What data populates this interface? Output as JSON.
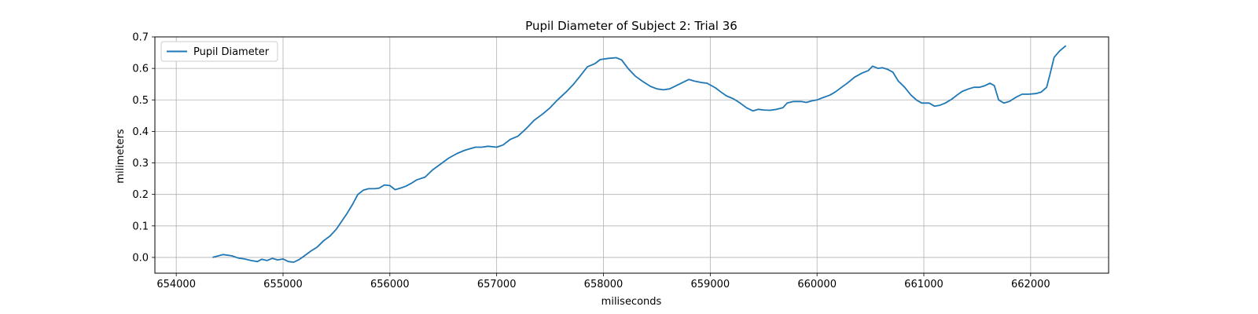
{
  "chart_data": {
    "type": "line",
    "title": "Pupil Diameter of Subject 2: Trial 36",
    "xlabel": "miliseconds",
    "ylabel": "milimeters",
    "xlim": [
      653800,
      662730
    ],
    "ylim": [
      -0.05,
      0.7
    ],
    "xticks": [
      654000,
      655000,
      656000,
      657000,
      658000,
      659000,
      660000,
      661000,
      662000
    ],
    "yticks": [
      0.0,
      0.1,
      0.2,
      0.3,
      0.4,
      0.5,
      0.6,
      0.7
    ],
    "xtick_labels": [
      "654000",
      "655000",
      "656000",
      "657000",
      "658000",
      "659000",
      "660000",
      "661000",
      "662000"
    ],
    "ytick_labels": [
      "0.0",
      "0.1",
      "0.2",
      "0.3",
      "0.4",
      "0.5",
      "0.6",
      "0.7"
    ],
    "grid": true,
    "legend_position": "top-left",
    "series": [
      {
        "name": "Pupil Diameter",
        "color": "#1f77b4",
        "points": [
          [
            654340,
            0.0
          ],
          [
            654440,
            0.009
          ],
          [
            654520,
            0.005
          ],
          [
            654580,
            -0.002
          ],
          [
            654640,
            -0.005
          ],
          [
            654700,
            -0.01
          ],
          [
            654760,
            -0.013
          ],
          [
            654800,
            -0.006
          ],
          [
            654850,
            -0.01
          ],
          [
            654900,
            -0.003
          ],
          [
            654950,
            -0.008
          ],
          [
            655000,
            -0.005
          ],
          [
            655050,
            -0.013
          ],
          [
            655100,
            -0.015
          ],
          [
            655150,
            -0.007
          ],
          [
            655200,
            0.005
          ],
          [
            655260,
            0.02
          ],
          [
            655320,
            0.033
          ],
          [
            655380,
            0.053
          ],
          [
            655440,
            0.068
          ],
          [
            655500,
            0.09
          ],
          [
            655550,
            0.115
          ],
          [
            655600,
            0.14
          ],
          [
            655650,
            0.168
          ],
          [
            655700,
            0.2
          ],
          [
            655750,
            0.213
          ],
          [
            655800,
            0.218
          ],
          [
            655860,
            0.218
          ],
          [
            655900,
            0.22
          ],
          [
            655950,
            0.23
          ],
          [
            656000,
            0.228
          ],
          [
            656050,
            0.215
          ],
          [
            656100,
            0.22
          ],
          [
            656150,
            0.226
          ],
          [
            656200,
            0.235
          ],
          [
            656250,
            0.246
          ],
          [
            656330,
            0.255
          ],
          [
            656400,
            0.278
          ],
          [
            656470,
            0.295
          ],
          [
            656550,
            0.315
          ],
          [
            656630,
            0.33
          ],
          [
            656700,
            0.34
          ],
          [
            656800,
            0.35
          ],
          [
            656860,
            0.35
          ],
          [
            656920,
            0.353
          ],
          [
            657000,
            0.35
          ],
          [
            657060,
            0.357
          ],
          [
            657130,
            0.375
          ],
          [
            657200,
            0.385
          ],
          [
            657280,
            0.41
          ],
          [
            657350,
            0.435
          ],
          [
            657430,
            0.455
          ],
          [
            657500,
            0.475
          ],
          [
            657570,
            0.5
          ],
          [
            657650,
            0.525
          ],
          [
            657720,
            0.55
          ],
          [
            657780,
            0.575
          ],
          [
            657850,
            0.605
          ],
          [
            657920,
            0.615
          ],
          [
            657970,
            0.628
          ],
          [
            658050,
            0.632
          ],
          [
            658120,
            0.634
          ],
          [
            658170,
            0.627
          ],
          [
            658230,
            0.6
          ],
          [
            658300,
            0.575
          ],
          [
            658370,
            0.558
          ],
          [
            658440,
            0.543
          ],
          [
            658500,
            0.535
          ],
          [
            658560,
            0.532
          ],
          [
            658620,
            0.535
          ],
          [
            658680,
            0.545
          ],
          [
            658740,
            0.555
          ],
          [
            658800,
            0.565
          ],
          [
            658850,
            0.56
          ],
          [
            658920,
            0.555
          ],
          [
            658970,
            0.553
          ],
          [
            659050,
            0.538
          ],
          [
            659100,
            0.525
          ],
          [
            659150,
            0.513
          ],
          [
            659220,
            0.503
          ],
          [
            659280,
            0.49
          ],
          [
            659340,
            0.475
          ],
          [
            659400,
            0.465
          ],
          [
            659450,
            0.47
          ],
          [
            659500,
            0.468
          ],
          [
            659560,
            0.467
          ],
          [
            659620,
            0.47
          ],
          [
            659680,
            0.475
          ],
          [
            659720,
            0.49
          ],
          [
            659780,
            0.495
          ],
          [
            659850,
            0.495
          ],
          [
            659900,
            0.492
          ],
          [
            659950,
            0.497
          ],
          [
            660000,
            0.5
          ],
          [
            660060,
            0.508
          ],
          [
            660120,
            0.515
          ],
          [
            660170,
            0.525
          ],
          [
            660230,
            0.54
          ],
          [
            660290,
            0.555
          ],
          [
            660350,
            0.572
          ],
          [
            660420,
            0.585
          ],
          [
            660480,
            0.593
          ],
          [
            660520,
            0.607
          ],
          [
            660570,
            0.6
          ],
          [
            660610,
            0.602
          ],
          [
            660660,
            0.597
          ],
          [
            660710,
            0.588
          ],
          [
            660760,
            0.56
          ],
          [
            660820,
            0.54
          ],
          [
            660880,
            0.515
          ],
          [
            660930,
            0.5
          ],
          [
            660980,
            0.49
          ],
          [
            661050,
            0.49
          ],
          [
            661100,
            0.48
          ],
          [
            661150,
            0.483
          ],
          [
            661200,
            0.49
          ],
          [
            661260,
            0.502
          ],
          [
            661310,
            0.515
          ],
          [
            661360,
            0.527
          ],
          [
            661420,
            0.535
          ],
          [
            661470,
            0.54
          ],
          [
            661520,
            0.54
          ],
          [
            661570,
            0.545
          ],
          [
            661620,
            0.553
          ],
          [
            661660,
            0.545
          ],
          [
            661700,
            0.5
          ],
          [
            661750,
            0.49
          ],
          [
            661800,
            0.495
          ],
          [
            661860,
            0.508
          ],
          [
            661920,
            0.518
          ],
          [
            661980,
            0.518
          ],
          [
            662050,
            0.52
          ],
          [
            662100,
            0.525
          ],
          [
            662150,
            0.54
          ],
          [
            662180,
            0.58
          ],
          [
            662220,
            0.635
          ],
          [
            662270,
            0.655
          ],
          [
            662330,
            0.672
          ]
        ]
      }
    ]
  }
}
